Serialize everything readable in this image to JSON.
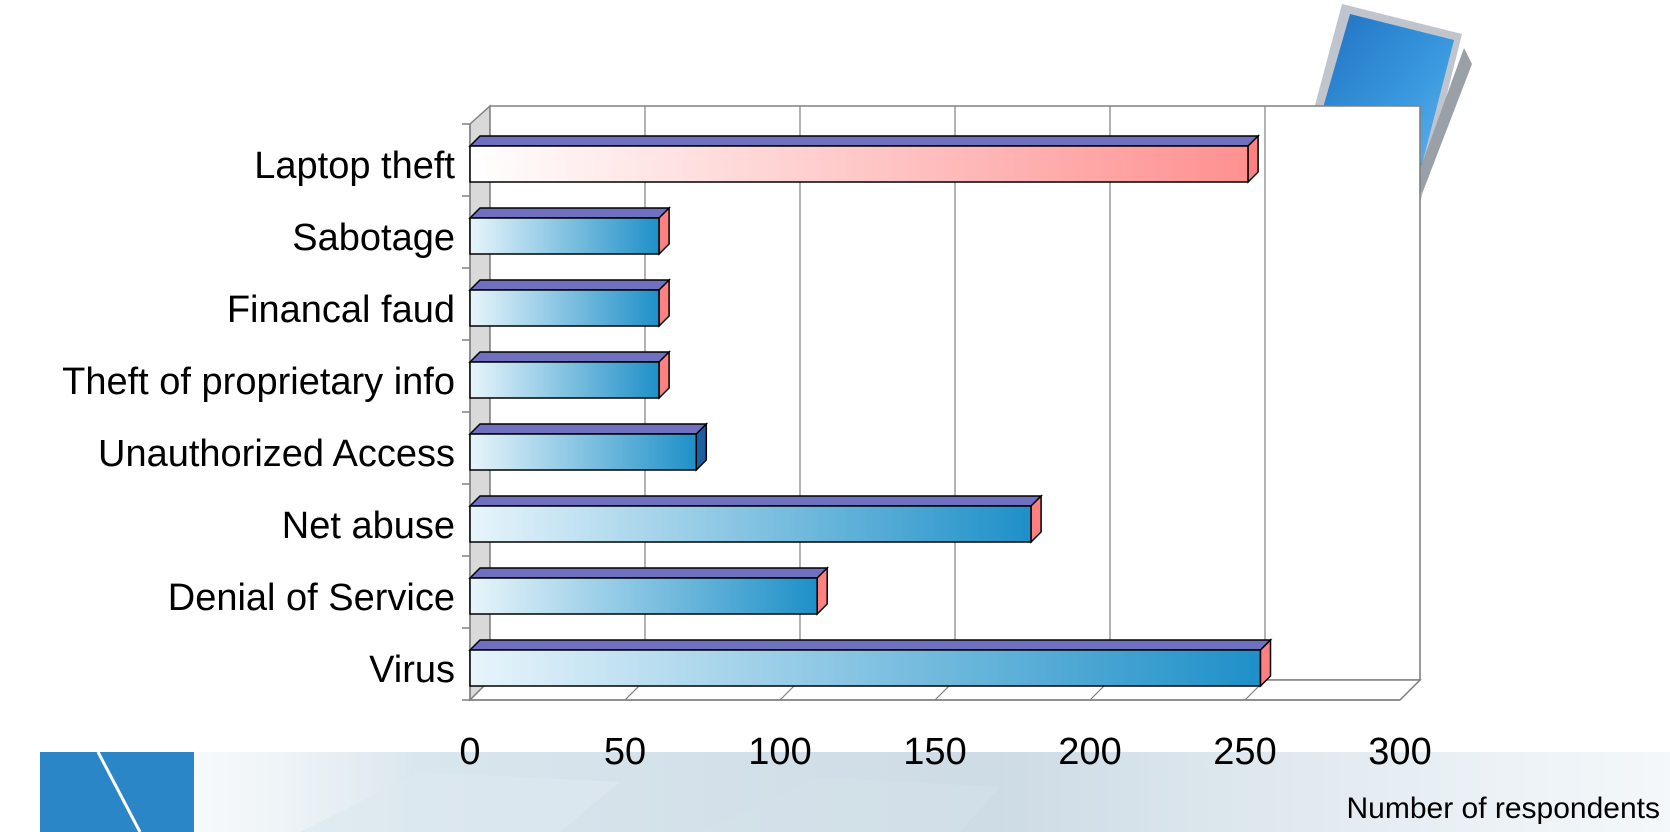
{
  "chart_data": {
    "type": "bar",
    "orientation": "horizontal",
    "categories": [
      "Virus",
      "Denial of Service",
      "Net abuse",
      "Unauthorized Access",
      "Theft of proprietary info",
      "Financal faud",
      "Sabotage",
      "Laptop theft"
    ],
    "values": [
      255,
      112,
      181,
      73,
      61,
      61,
      61,
      251
    ],
    "xlabel": "Number of respondents",
    "ylabel": "",
    "xlim": [
      0,
      300
    ],
    "xticks": [
      "0",
      "50",
      "100",
      "150",
      "200",
      "250",
      "300"
    ],
    "grid": true,
    "legend": "none",
    "highlight_category": "Laptop theft",
    "colors": {
      "bar_start": "#e8f5fb",
      "bar_end": "#1e90c8",
      "highlight_start": "#ffffff",
      "highlight_end": "#ff9090",
      "bar_top": "#7070c0",
      "bar_end_cap": "#ff8080",
      "bar_end_cap_alt": "#1e5fa0",
      "back_wall": "#ffffff",
      "side_wall": "#d9d9d9",
      "grid": "#808080"
    }
  },
  "decor": {
    "laptop_icon": "laptop-icon",
    "logo_icon": "logo-icon"
  }
}
